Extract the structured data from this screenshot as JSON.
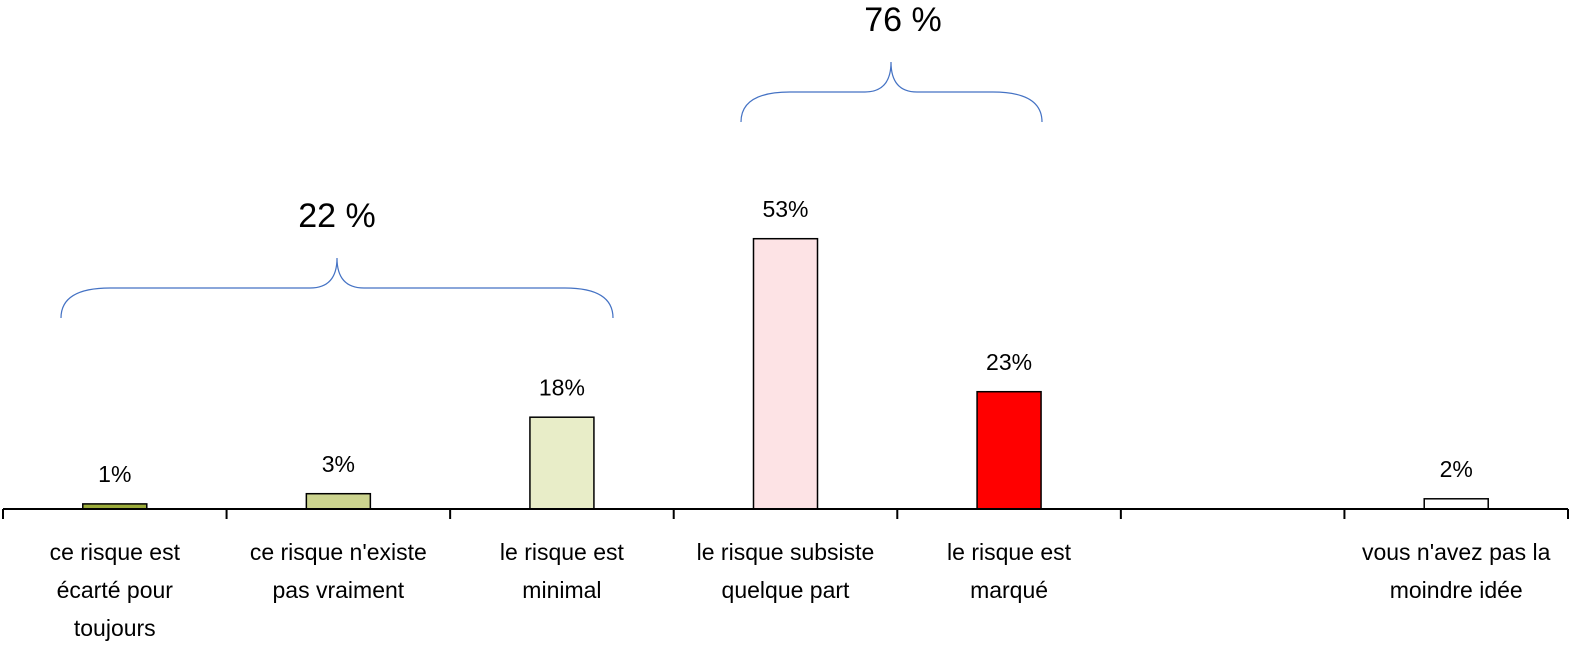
{
  "chart_data": {
    "type": "bar",
    "categories": [
      "ce risque est écarté pour toujours",
      "ce risque n'existe pas vraiment",
      "le risque est minimal",
      "le risque subsiste quelque part",
      "le risque est marqué",
      null,
      "vous n'avez pas la moindre idée"
    ],
    "values": [
      1,
      3,
      18,
      53,
      23,
      null,
      2
    ],
    "value_labels": [
      "1%",
      "3%",
      "18%",
      "53%",
      "23%",
      null,
      "2%"
    ],
    "colors": [
      "#9bab3b",
      "#ccd48f",
      "#e8edc8",
      "#fde3e5",
      "#ff0000",
      null,
      "#ffffff"
    ],
    "ylim": [
      0,
      100
    ],
    "annotations": [
      "22 %",
      "76 %"
    ]
  }
}
